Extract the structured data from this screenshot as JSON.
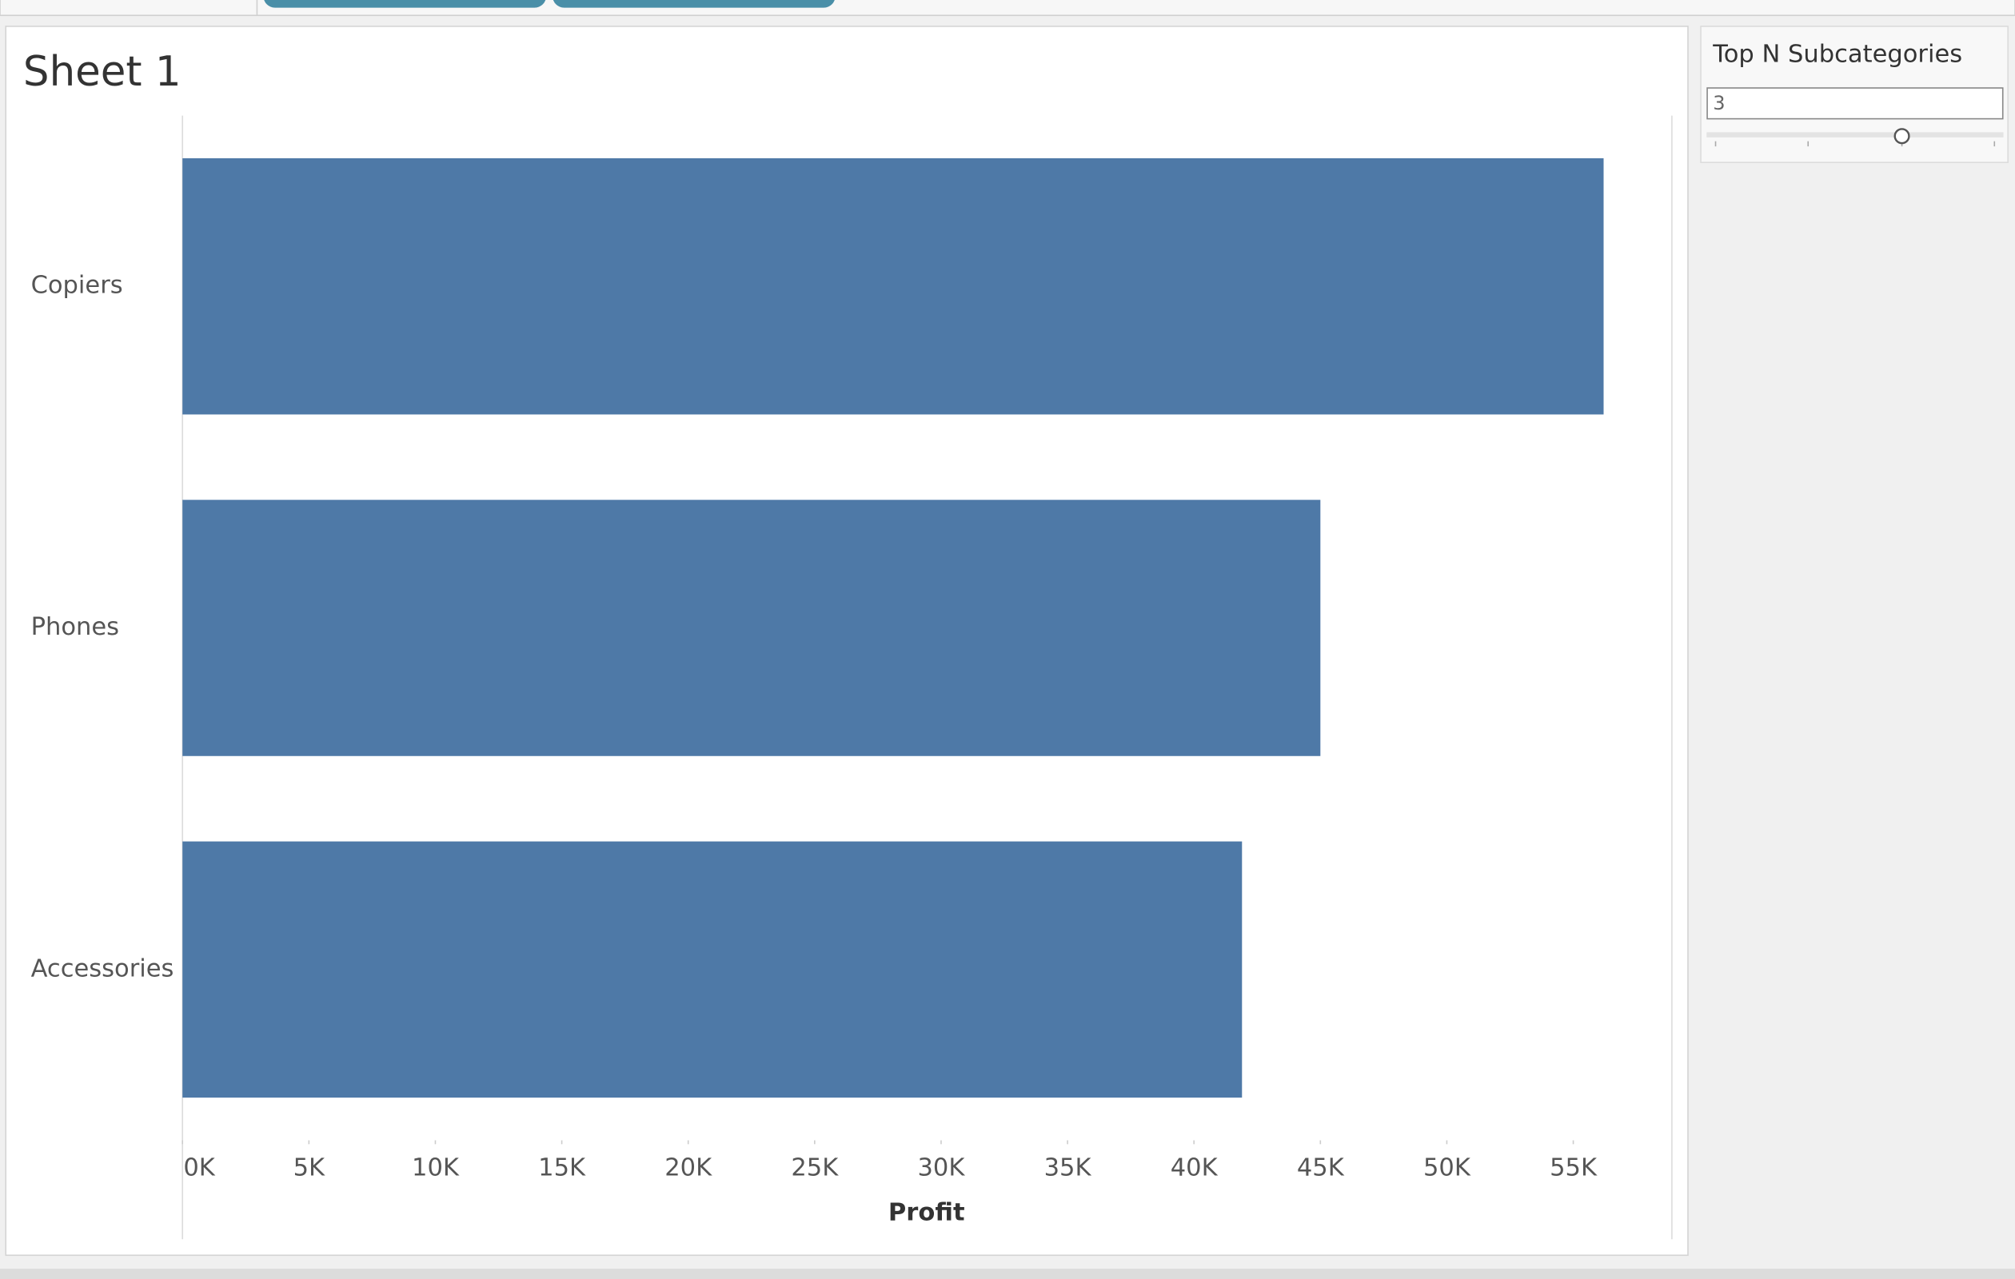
{
  "chart_data": {
    "type": "bar",
    "orientation": "horizontal",
    "title": "Sheet 1",
    "x_label": "Profit",
    "categories": [
      "Copiers",
      "Phones",
      "Accessories"
    ],
    "values": [
      56200,
      45000,
      41900
    ],
    "color": "#4e79a7",
    "xlim": [
      0,
      58900
    ],
    "xticks": [
      {
        "value": 0,
        "label": "0K"
      },
      {
        "value": 5000,
        "label": "5K"
      },
      {
        "value": 10000,
        "label": "10K"
      },
      {
        "value": 15000,
        "label": "15K"
      },
      {
        "value": 20000,
        "label": "20K"
      },
      {
        "value": 25000,
        "label": "25K"
      },
      {
        "value": 30000,
        "label": "30K"
      },
      {
        "value": 35000,
        "label": "35K"
      },
      {
        "value": 40000,
        "label": "40K"
      },
      {
        "value": 45000,
        "label": "45K"
      },
      {
        "value": 50000,
        "label": "50K"
      },
      {
        "value": 55000,
        "label": "55K"
      }
    ],
    "grid": false
  },
  "parameter": {
    "title": "Top N Subcategories",
    "value": "3"
  }
}
